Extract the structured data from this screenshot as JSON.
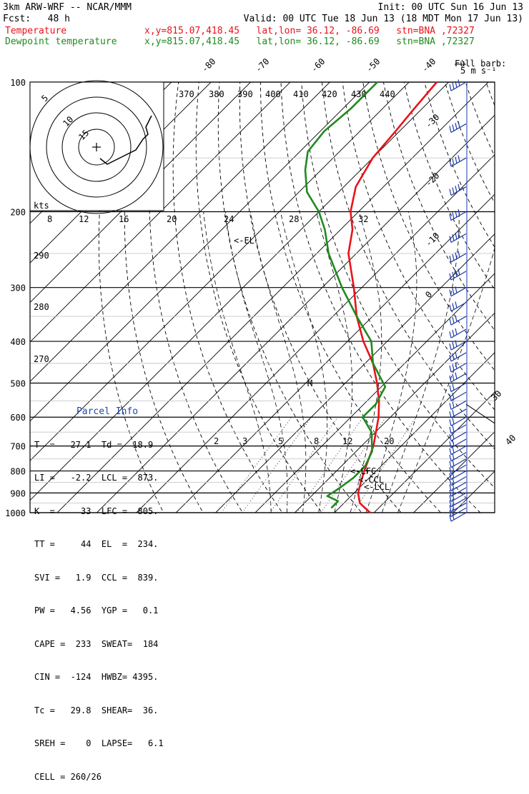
{
  "header": {
    "model": "3km ARW-WRF -- NCAR/MMM",
    "init": "Init: 00 UTC Sun 16 Jun 13",
    "fcst": "Fcst:   48 h",
    "valid": "Valid: 00 UTC Tue 18 Jun 13 (18 MDT Mon 17 Jun 13)",
    "legend": [
      {
        "name": "Temperature",
        "loc": "x,y=815.07,418.45   lat,lon= 36.12, -86.69   stn=BNA ,72327",
        "color": "#e8131b"
      },
      {
        "name": "Dewpoint temperature",
        "loc": "x,y=815.07,418.45   lat,lon= 36.12, -86.69   stn=BNA ,72327",
        "color": "#1f8a1f"
      }
    ]
  },
  "parcel": {
    "title": "Parcel Info",
    "rows": [
      "T  =   27.1  Td =  18.9",
      "LI =   -2.2  LCL =  873.",
      "K  =     33  LFC =  805.",
      "TT =     44  EL  =  234.",
      "SVI =   1.9  CCL =  839.",
      "PW =   4.56  YGP =   0.1",
      "CAPE =  233  SWEAT=  184",
      "CIN =  -124  HWBZ= 4395.",
      "Tc =   29.8  SHEAR=  36.",
      "SREH =    0  LAPSE=   6.1",
      "CELL = 260/26"
    ]
  },
  "barb_label": [
    "Full barb:",
    "5 m s⁻¹"
  ],
  "chart_data": {
    "type": "line",
    "title": "",
    "ylabel": "",
    "y_scale": "log-pressure",
    "pressure_levels": [
      100,
      200,
      300,
      400,
      500,
      600,
      700,
      800,
      900,
      1000
    ],
    "skew_isotherm_labels": [
      "-80",
      "-70",
      "-60",
      "-50",
      "-40",
      "-30",
      "-20",
      "-10",
      "0",
      "30",
      "40"
    ],
    "theta_labels": [
      "370",
      "380",
      "390",
      "400",
      "410",
      "420",
      "430",
      "440",
      "290",
      "280",
      "270"
    ],
    "mixing_ratio_labels": [
      "2",
      "3",
      "5",
      "8",
      "12",
      "20"
    ],
    "hodograph": {
      "speed_axis_label": "kts",
      "speed_ticks": [
        "8",
        "12",
        "16",
        "20",
        "24",
        "28",
        "32"
      ],
      "ring_labels": [
        "5",
        "10",
        "15"
      ]
    },
    "annotations": [
      "<-EL",
      "<-LFC",
      "<-CCL",
      "<-LCL"
    ],
    "series": [
      {
        "name": "Temperature",
        "color": "#e8131b",
        "points": [
          [
            1000,
            29
          ],
          [
            950,
            24
          ],
          [
            900,
            21
          ],
          [
            850,
            19
          ],
          [
            800,
            17
          ],
          [
            700,
            13
          ],
          [
            600,
            7
          ],
          [
            550,
            3
          ],
          [
            500,
            -2
          ],
          [
            450,
            -8
          ],
          [
            400,
            -16
          ],
          [
            350,
            -24
          ],
          [
            300,
            -32
          ],
          [
            250,
            -42
          ],
          [
            220,
            -47
          ],
          [
            200,
            -52
          ],
          [
            175,
            -57
          ],
          [
            150,
            -60
          ],
          [
            130,
            -61
          ],
          [
            115,
            -62
          ],
          [
            100,
            -63
          ]
        ]
      },
      {
        "name": "Dewpoint temperature",
        "color": "#1f8a1f",
        "points": [
          [
            975,
            18
          ],
          [
            940,
            18
          ],
          [
            915,
            14
          ],
          [
            880,
            15
          ],
          [
            830,
            16
          ],
          [
            780,
            16
          ],
          [
            720,
            14
          ],
          [
            650,
            9
          ],
          [
            600,
            3
          ],
          [
            560,
            3
          ],
          [
            510,
            1
          ],
          [
            450,
            -8
          ],
          [
            400,
            -14
          ],
          [
            350,
            -24
          ],
          [
            300,
            -35
          ],
          [
            250,
            -47
          ],
          [
            220,
            -54
          ],
          [
            200,
            -60
          ],
          [
            180,
            -68
          ],
          [
            160,
            -74
          ],
          [
            145,
            -78
          ],
          [
            130,
            -79
          ],
          [
            115,
            -78
          ],
          [
            100,
            -78
          ]
        ]
      }
    ]
  }
}
